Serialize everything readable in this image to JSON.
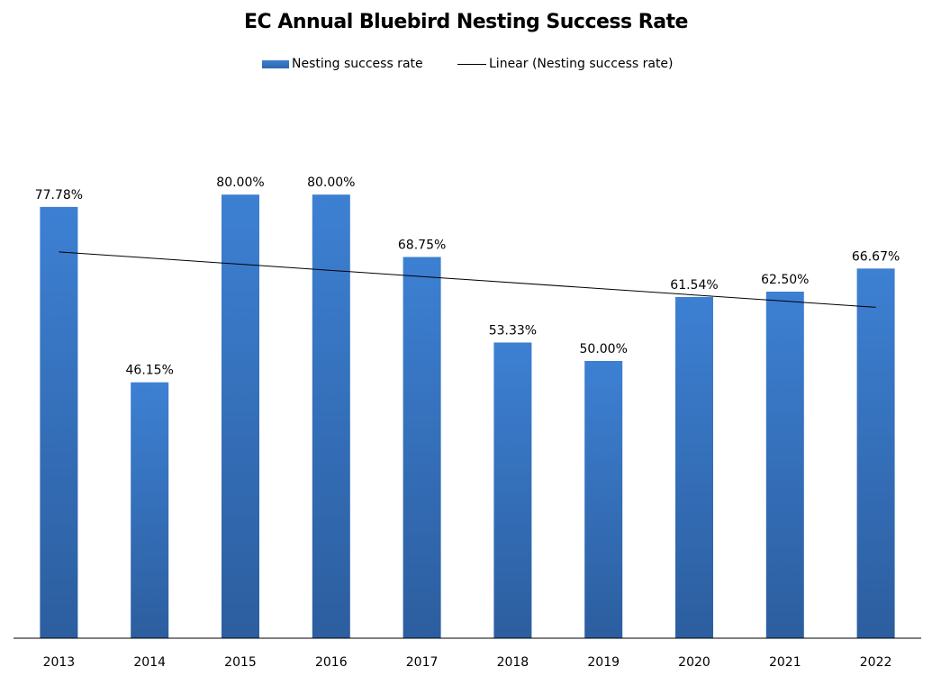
{
  "chart_data": {
    "type": "bar",
    "title": "EC Annual Bluebird Nesting Success Rate",
    "categories": [
      "2013",
      "2014",
      "2015",
      "2016",
      "2017",
      "2018",
      "2019",
      "2020",
      "2021",
      "2022"
    ],
    "series": [
      {
        "name": "Nesting success rate",
        "values": [
          77.78,
          46.15,
          80.0,
          80.0,
          68.75,
          53.33,
          50.0,
          61.54,
          62.5,
          66.67
        ],
        "labels": [
          "77.78%",
          "46.15%",
          "80.00%",
          "80.00%",
          "68.75%",
          "53.33%",
          "50.00%",
          "61.54%",
          "62.50%",
          "66.67%"
        ],
        "color": "#3b7bd0"
      }
    ],
    "trendline": {
      "name": "Linear (Nesting success rate)",
      "type": "linear",
      "color": "#000000"
    },
    "ylim": [
      0,
      100
    ],
    "grid": false,
    "legend": "top"
  }
}
